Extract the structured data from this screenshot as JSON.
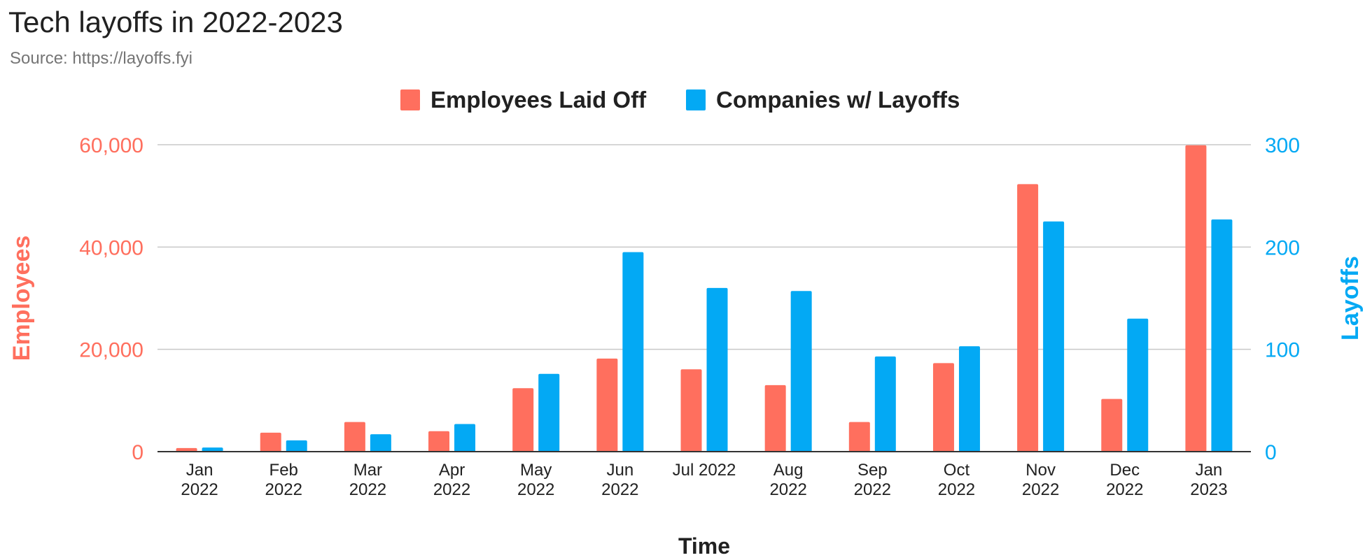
{
  "header": {
    "title": "Tech layoffs in 2022-2023",
    "subtitle": "Source: https://layoffs.fyi"
  },
  "chart_data": {
    "type": "bar",
    "title": "Tech layoffs in 2022-2023",
    "subtitle": "Source: https://layoffs.fyi",
    "categories": [
      [
        "Jan",
        "2022"
      ],
      [
        "Feb",
        "2022"
      ],
      [
        "Mar",
        "2022"
      ],
      [
        "Apr",
        "2022"
      ],
      [
        "May",
        "2022"
      ],
      [
        "Jun",
        "2022"
      ],
      [
        "Jul 2022"
      ],
      [
        "Aug",
        "2022"
      ],
      [
        "Sep",
        "2022"
      ],
      [
        "Oct",
        "2022"
      ],
      [
        "Nov",
        "2022"
      ],
      [
        "Dec",
        "2022"
      ],
      [
        "Jan",
        "2023"
      ]
    ],
    "series": [
      {
        "name": "Employees Laid Off",
        "axis": "left",
        "color": "#ff6f5e",
        "values": [
          700,
          3700,
          5800,
          4000,
          12400,
          18200,
          16100,
          13000,
          5800,
          17300,
          52300,
          10300,
          59900
        ]
      },
      {
        "name": "Companies w/ Layoffs",
        "axis": "right",
        "color": "#03a9f4",
        "values": [
          4,
          11,
          17,
          27,
          76,
          195,
          160,
          157,
          93,
          103,
          225,
          130,
          227
        ]
      }
    ],
    "xlabel": "Time",
    "ylabel_left": "Employees",
    "ylabel_right": "Layoffs",
    "ylim_left": [
      0,
      60000
    ],
    "ylim_right": [
      0,
      300
    ],
    "yticks_left": [
      "0",
      "20,000",
      "40,000",
      "60,000"
    ],
    "yticks_right": [
      "0",
      "100",
      "200",
      "300"
    ],
    "grid": true,
    "legend_position": "top-center"
  }
}
